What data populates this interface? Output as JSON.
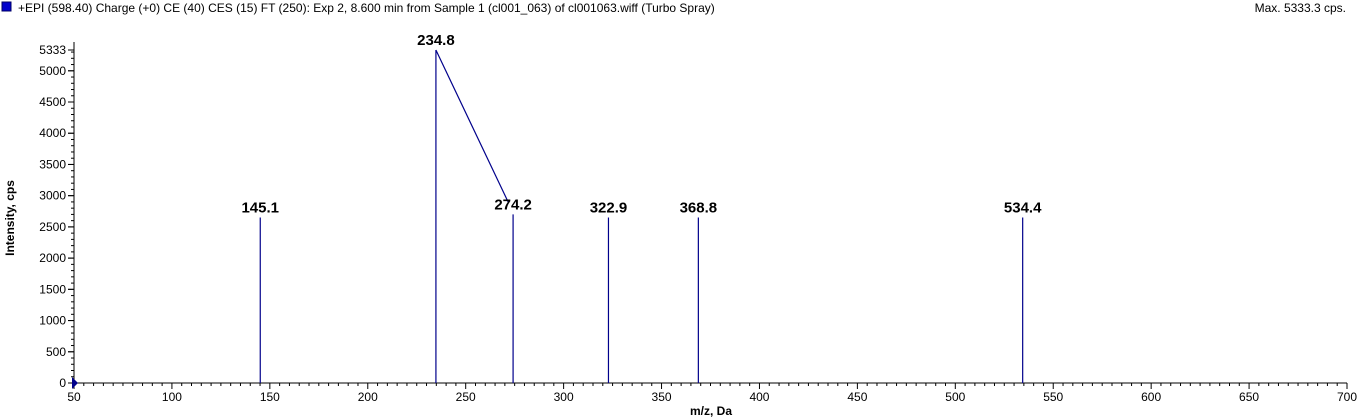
{
  "header": {
    "title": "+EPI (598.40) Charge (+0) CE (40) CES (15) FT (250): Exp 2, 8.600 min from Sample 1 (cl001_063) of cl001063.wiff (Turbo Spray)",
    "max_label": "Max. 5333.3 cps.",
    "series_color": "#0000cc"
  },
  "chart_data": {
    "type": "bar",
    "xlabel": "m/z, Da",
    "ylabel": "Intensity, cps",
    "xlim": [
      50,
      700
    ],
    "ylim": [
      0,
      5333
    ],
    "x_ticks": [
      50,
      100,
      150,
      200,
      250,
      300,
      350,
      400,
      450,
      500,
      550,
      600,
      650,
      700
    ],
    "y_ticks": [
      0,
      500,
      1000,
      1500,
      2000,
      2500,
      3000,
      3500,
      4000,
      4500,
      5000,
      5333
    ],
    "line_color": "#00008b",
    "peaks": [
      {
        "x": 145.1,
        "y": 2650,
        "label": "145.1"
      },
      {
        "x": 234.8,
        "y": 5333,
        "label": "234.8"
      },
      {
        "x": 274.2,
        "y": 2700,
        "label": "274.2"
      },
      {
        "x": 322.9,
        "y": 2650,
        "label": "322.9"
      },
      {
        "x": 368.8,
        "y": 2650,
        "label": "368.8"
      },
      {
        "x": 534.4,
        "y": 2650,
        "label": "534.4"
      }
    ],
    "annotation_line": {
      "from": [
        234.8,
        5333
      ],
      "to": [
        274.2,
        2900
      ]
    }
  }
}
